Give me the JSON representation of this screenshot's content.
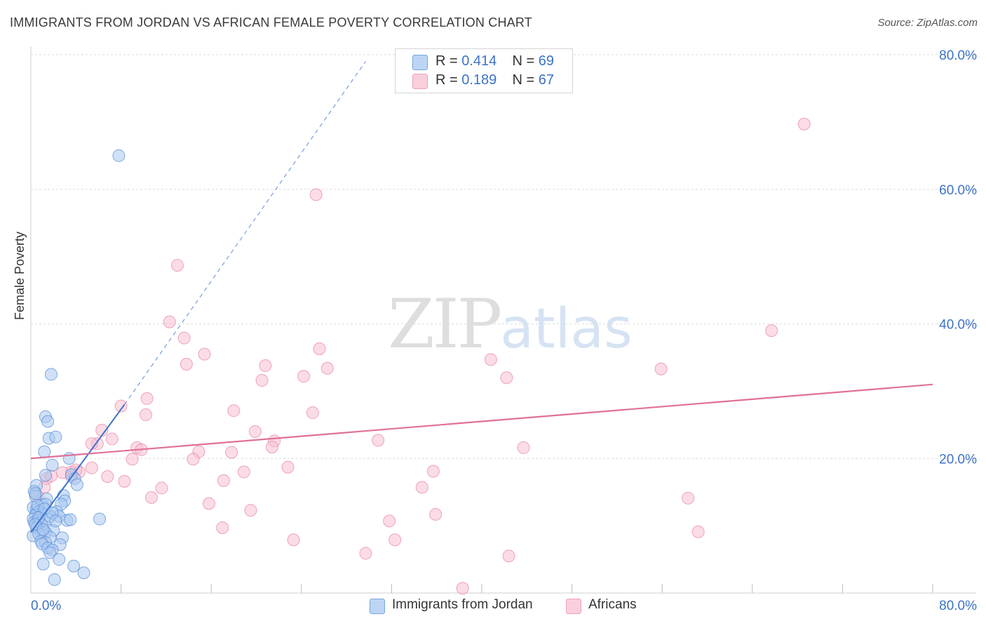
{
  "header": {
    "title": "IMMIGRANTS FROM JORDAN VS AFRICAN FEMALE POVERTY CORRELATION CHART",
    "source": "Source: ZipAtlas.com"
  },
  "watermark": {
    "zip": "ZIP",
    "atlas": "atlas"
  },
  "legend": {
    "row1": {
      "r_label": "R = ",
      "r_value": "0.414",
      "n_label": "N = ",
      "n_value": "69"
    },
    "row2": {
      "r_label": "R = ",
      "r_value": "0.189",
      "n_label": "N = ",
      "n_value": "67"
    }
  },
  "colors": {
    "blue_fill": "#a9c8f0",
    "blue_stroke": "#5b8fd6",
    "blue_line": "#3a72cc",
    "pink_fill": "#f7bfd0",
    "pink_stroke": "#e58aa8",
    "pink_line": "#e0709a",
    "grid": "#dcdcdc",
    "tick_label": "#3d72c8"
  },
  "chart_data": {
    "type": "scatter",
    "title": "IMMIGRANTS FROM JORDAN VS AFRICAN FEMALE POVERTY CORRELATION CHART",
    "xlabel": "",
    "ylabel": "Female Poverty",
    "xlim": [
      0,
      80
    ],
    "ylim": [
      0,
      80
    ],
    "x_tick_labels": [
      "0.0%",
      "80.0%"
    ],
    "y_ticks": [
      20,
      40,
      60,
      80
    ],
    "y_tick_labels": [
      "20.0%",
      "40.0%",
      "60.0%",
      "80.0%"
    ],
    "legend_position": "top-center",
    "series": [
      {
        "name": "Immigrants from Jordan",
        "color": "#a9c8f0",
        "R": 0.414,
        "N": 69,
        "trend": {
          "x0": 0.0,
          "y0": 9.0,
          "x1": 8.3,
          "y1": 28.0,
          "dash_to_x": 29.7,
          "dash_to_y": 79.0
        },
        "points": [
          [
            7.8,
            65.0
          ],
          [
            1.8,
            32.5
          ],
          [
            1.3,
            26.2
          ],
          [
            1.5,
            25.5
          ],
          [
            1.6,
            23.0
          ],
          [
            2.2,
            23.2
          ],
          [
            1.2,
            21.0
          ],
          [
            3.4,
            20.0
          ],
          [
            1.9,
            19.0
          ],
          [
            3.6,
            17.6
          ],
          [
            1.3,
            17.5
          ],
          [
            3.9,
            17.0
          ],
          [
            4.1,
            16.1
          ],
          [
            0.5,
            16.0
          ],
          [
            0.3,
            15.1
          ],
          [
            0.4,
            14.4
          ],
          [
            2.9,
            14.5
          ],
          [
            1.4,
            14.0
          ],
          [
            0.4,
            14.8
          ],
          [
            3.0,
            13.7
          ],
          [
            2.7,
            13.2
          ],
          [
            1.0,
            13.1
          ],
          [
            1.3,
            13.2
          ],
          [
            0.2,
            12.7
          ],
          [
            0.5,
            12.4
          ],
          [
            0.8,
            12.2
          ],
          [
            2.3,
            12.1
          ],
          [
            0.6,
            12.0
          ],
          [
            1.0,
            11.8
          ],
          [
            0.4,
            11.6
          ],
          [
            2.5,
            11.4
          ],
          [
            1.7,
            11.4
          ],
          [
            0.2,
            11.0
          ],
          [
            1.5,
            11.0
          ],
          [
            0.6,
            10.8
          ],
          [
            3.2,
            10.8
          ],
          [
            3.5,
            10.9
          ],
          [
            6.1,
            11.0
          ],
          [
            0.3,
            10.5
          ],
          [
            0.8,
            10.4
          ],
          [
            0.6,
            10.0
          ],
          [
            1.0,
            10.1
          ],
          [
            0.5,
            9.7
          ],
          [
            2.0,
            9.3
          ],
          [
            0.9,
            9.1
          ],
          [
            1.3,
            9.0
          ],
          [
            0.2,
            8.5
          ],
          [
            0.7,
            8.8
          ],
          [
            1.7,
            8.3
          ],
          [
            2.8,
            8.2
          ],
          [
            0.9,
            7.7
          ],
          [
            1.3,
            7.5
          ],
          [
            2.6,
            7.2
          ],
          [
            1.0,
            7.3
          ],
          [
            1.5,
            6.7
          ],
          [
            1.9,
            6.4
          ],
          [
            1.7,
            6.0
          ],
          [
            2.5,
            5.0
          ],
          [
            1.1,
            4.3
          ],
          [
            3.8,
            4.0
          ],
          [
            4.7,
            3.0
          ],
          [
            2.1,
            2.0
          ],
          [
            0.6,
            13.0
          ],
          [
            1.2,
            12.5
          ],
          [
            0.7,
            11.2
          ],
          [
            1.9,
            11.9
          ],
          [
            0.4,
            10.2
          ],
          [
            2.2,
            10.7
          ],
          [
            1.1,
            9.4
          ]
        ]
      },
      {
        "name": "Africans",
        "color": "#f7bfd0",
        "R": 0.189,
        "N": 67,
        "trend": {
          "x0": 0.0,
          "y0": 20.0,
          "x1": 80.0,
          "y1": 31.0
        },
        "points": [
          [
            68.6,
            69.7
          ],
          [
            25.3,
            59.2
          ],
          [
            13.0,
            48.7
          ],
          [
            12.3,
            40.3
          ],
          [
            65.7,
            39.0
          ],
          [
            13.6,
            37.9
          ],
          [
            25.6,
            36.3
          ],
          [
            15.4,
            35.5
          ],
          [
            40.8,
            34.7
          ],
          [
            13.8,
            34.0
          ],
          [
            20.8,
            33.8
          ],
          [
            26.3,
            33.4
          ],
          [
            55.9,
            33.3
          ],
          [
            24.2,
            32.2
          ],
          [
            42.2,
            32.0
          ],
          [
            20.5,
            31.6
          ],
          [
            8.0,
            27.8
          ],
          [
            18.0,
            27.1
          ],
          [
            25.0,
            26.8
          ],
          [
            10.3,
            28.9
          ],
          [
            10.2,
            26.5
          ],
          [
            19.9,
            24.0
          ],
          [
            6.3,
            24.2
          ],
          [
            7.2,
            22.9
          ],
          [
            21.6,
            22.6
          ],
          [
            30.8,
            22.7
          ],
          [
            5.9,
            22.2
          ],
          [
            5.4,
            22.2
          ],
          [
            21.4,
            21.7
          ],
          [
            9.4,
            21.6
          ],
          [
            9.8,
            21.3
          ],
          [
            43.7,
            21.6
          ],
          [
            14.9,
            21.0
          ],
          [
            17.8,
            20.9
          ],
          [
            9.0,
            19.9
          ],
          [
            14.4,
            19.9
          ],
          [
            22.8,
            18.7
          ],
          [
            5.4,
            18.6
          ],
          [
            35.7,
            18.1
          ],
          [
            3.6,
            18.0
          ],
          [
            4.3,
            18.0
          ],
          [
            2.8,
            17.9
          ],
          [
            18.9,
            18.0
          ],
          [
            6.8,
            17.3
          ],
          [
            1.4,
            17.0
          ],
          [
            1.8,
            17.4
          ],
          [
            3.6,
            17.3
          ],
          [
            8.3,
            16.6
          ],
          [
            17.1,
            16.7
          ],
          [
            1.2,
            15.7
          ],
          [
            11.6,
            15.6
          ],
          [
            34.7,
            15.7
          ],
          [
            10.7,
            14.2
          ],
          [
            58.3,
            14.1
          ],
          [
            0.6,
            14.4
          ],
          [
            15.8,
            13.3
          ],
          [
            19.5,
            12.3
          ],
          [
            35.9,
            11.7
          ],
          [
            31.8,
            10.7
          ],
          [
            17.0,
            9.7
          ],
          [
            59.2,
            9.1
          ],
          [
            23.3,
            7.9
          ],
          [
            32.3,
            7.9
          ],
          [
            29.7,
            5.9
          ],
          [
            42.4,
            5.5
          ],
          [
            38.3,
            0.7
          ],
          [
            4.0,
            18.3
          ]
        ]
      }
    ]
  },
  "bottom_legend": {
    "series1": "Immigrants from Jordan",
    "series2": "Africans"
  }
}
